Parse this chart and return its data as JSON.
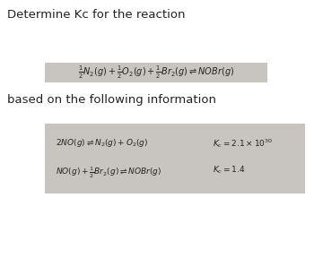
{
  "white_bg": "#ffffff",
  "title_text": "Determine Kc for the reaction",
  "subtitle_text": "based on the following information",
  "main_eq": "$\\frac{1}{2}N_2(g) + \\frac{1}{2}O_2(g) + \\frac{1}{2}Br_2(g) \\rightleftharpoons NOBr(g)$",
  "eq1_left": "$2NO(g) \\rightleftharpoons N_2(g) + O_2(g)$",
  "eq1_right": "$K_c = 2.1 \\times 10^{30}$",
  "eq2_left": "$NO(g) + \\frac{1}{2}Br_2(g) \\rightleftharpoons NOBr(g)$",
  "eq2_right": "$K_c = 1.4$",
  "box_color": "#c8c4c0",
  "text_color": "#222222",
  "fontsize_title": 9.5,
  "fontsize_eq": 7.0,
  "fontsize_info": 6.5
}
